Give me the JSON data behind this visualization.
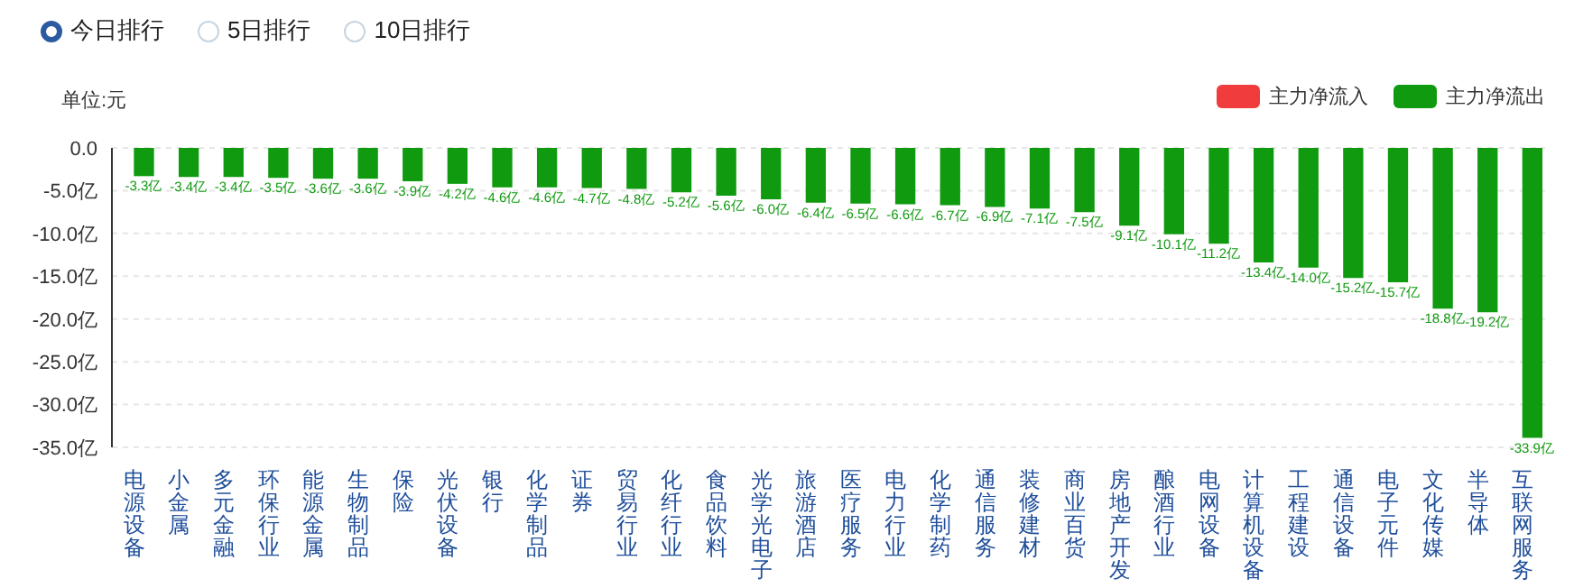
{
  "chart_data": {
    "type": "bar",
    "ylabel": "单位:元",
    "annotations": [
      "今日排行",
      "5日排行",
      "10日排行"
    ],
    "categories": [
      "电源设备",
      "小金属",
      "多元金融",
      "环保行业",
      "能源金属",
      "生物制品",
      "保险",
      "光伏设备",
      "银行",
      "化学制品",
      "证券",
      "贸易行业",
      "化纤行业",
      "食品饮料",
      "光学光电子",
      "旅游酒店",
      "医疗服务",
      "电力行业",
      "化学制药",
      "通信服务",
      "装修建材",
      "商业百货",
      "房地产开发",
      "酿酒行业",
      "电网设备",
      "计算机设备",
      "工程建设",
      "通信设备",
      "电子元件",
      "文化传媒",
      "半导体",
      "互联网服务"
    ],
    "series": [
      {
        "name": "主力净流入",
        "color": "#f03c3c",
        "values": [
          null,
          null,
          null,
          null,
          null,
          null,
          null,
          null,
          null,
          null,
          null,
          null,
          null,
          null,
          null,
          null,
          null,
          null,
          null,
          null,
          null,
          null,
          null,
          null,
          null,
          null,
          null,
          null,
          null,
          null,
          null,
          null
        ]
      },
      {
        "name": "主力净流出",
        "color": "#0f9a0f",
        "values": [
          -3.3,
          -3.4,
          -3.4,
          -3.5,
          -3.6,
          -3.6,
          -3.9,
          -4.2,
          -4.6,
          -4.6,
          -4.7,
          -4.8,
          -5.2,
          -5.6,
          -6.0,
          -6.4,
          -6.5,
          -6.6,
          -6.7,
          -6.9,
          -7.1,
          -7.5,
          -9.1,
          -10.1,
          -11.2,
          -13.4,
          -14.0,
          -15.2,
          -15.7,
          -18.8,
          -19.2,
          -33.9
        ],
        "value_labels": [
          "-3.3亿",
          "-3.4亿",
          "-3.4亿",
          "-3.5亿",
          "-3.6亿",
          "-3.6亿",
          "-3.9亿",
          "-4.2亿",
          "-4.6亿",
          "-4.6亿",
          "-4.7亿",
          "-4.8亿",
          "-5.2亿",
          "-5.6亿",
          "-6.0亿",
          "-6.4亿",
          "-6.5亿",
          "-6.6亿",
          "-6.7亿",
          "-6.9亿",
          "-7.1亿",
          "-7.5亿",
          "-9.1亿",
          "-10.1亿",
          "-11.2亿",
          "-13.4亿",
          "-14.0亿",
          "-15.2亿",
          "-15.7亿",
          "-18.8亿",
          "-19.2亿",
          "-33.9亿"
        ]
      }
    ],
    "ylim": [
      -35,
      0
    ],
    "yticks": [
      {
        "value": 0,
        "label": "0.0"
      },
      {
        "value": -5,
        "label": "-5.0亿"
      },
      {
        "value": -10,
        "label": "-10.0亿"
      },
      {
        "value": -15,
        "label": "-15.0亿"
      },
      {
        "value": -20,
        "label": "-20.0亿"
      },
      {
        "value": -25,
        "label": "-25.0亿"
      },
      {
        "value": -30,
        "label": "-30.0亿"
      },
      {
        "value": -35,
        "label": "-35.0亿"
      }
    ],
    "grid": "y",
    "legend": "top right"
  }
}
